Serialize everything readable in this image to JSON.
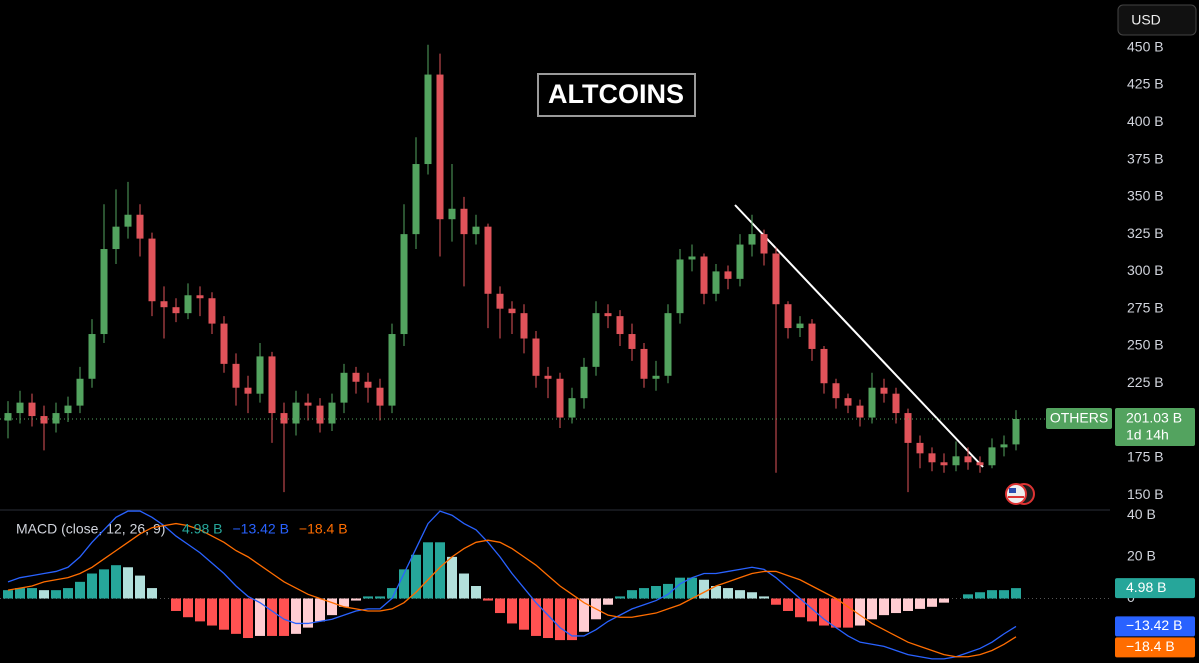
{
  "chart_data": [
    {
      "type": "candlestick",
      "title": "ALTCOINS",
      "currency": "USD",
      "series_label": "OTHERS",
      "last_label": "201.03 B",
      "countdown": "1d 14h",
      "up_color": "#53a35f",
      "down_color": "#e0535a",
      "open": [
        200,
        205,
        212,
        203,
        198,
        205,
        210,
        228,
        258,
        315,
        330,
        338,
        322,
        280,
        276,
        272,
        284,
        282,
        265,
        238,
        222,
        218,
        243,
        205,
        198,
        212,
        210,
        198,
        212,
        232,
        226,
        222,
        210,
        258,
        325,
        372,
        432,
        335,
        342,
        325,
        330,
        285,
        275,
        272,
        255,
        230,
        228,
        202,
        215,
        236,
        272,
        270,
        258,
        248,
        228,
        230,
        272,
        308,
        310,
        285,
        300,
        295,
        318,
        325,
        312,
        278,
        262,
        265,
        248,
        225,
        215,
        210,
        202,
        222,
        218,
        205,
        185,
        178,
        172,
        170,
        176,
        172,
        170,
        182,
        184
      ],
      "high": [
        213,
        220,
        218,
        210,
        212,
        216,
        236,
        268,
        345,
        355,
        360,
        345,
        326,
        290,
        282,
        292,
        290,
        286,
        270,
        245,
        230,
        252,
        246,
        212,
        220,
        218,
        215,
        218,
        238,
        236,
        232,
        228,
        265,
        345,
        390,
        452,
        446,
        372,
        350,
        338,
        332,
        290,
        280,
        278,
        260,
        236,
        232,
        222,
        242,
        280,
        278,
        274,
        265,
        252,
        240,
        278,
        315,
        318,
        312,
        305,
        304,
        325,
        338,
        328,
        316,
        280,
        270,
        268,
        250,
        228,
        218,
        214,
        232,
        228,
        222,
        208,
        190,
        182,
        178,
        186,
        182,
        176,
        188,
        190,
        207
      ],
      "low": [
        188,
        198,
        196,
        180,
        192,
        199,
        205,
        222,
        252,
        305,
        322,
        310,
        270,
        255,
        266,
        268,
        270,
        258,
        232,
        210,
        205,
        212,
        185,
        152,
        190,
        200,
        192,
        193,
        205,
        218,
        212,
        200,
        205,
        250,
        315,
        365,
        310,
        320,
        290,
        318,
        262,
        255,
        258,
        245,
        222,
        215,
        195,
        198,
        208,
        230,
        262,
        250,
        240,
        222,
        220,
        225,
        265,
        300,
        278,
        280,
        288,
        290,
        310,
        304,
        165,
        255,
        256,
        240,
        218,
        208,
        205,
        196,
        198,
        212,
        198,
        152,
        168,
        166,
        165,
        166,
        167,
        165,
        168,
        176,
        180
      ],
      "close": [
        205,
        212,
        203,
        198,
        205,
        210,
        228,
        258,
        315,
        330,
        338,
        322,
        280,
        276,
        272,
        284,
        282,
        265,
        238,
        222,
        218,
        243,
        205,
        198,
        212,
        210,
        198,
        212,
        232,
        226,
        222,
        210,
        258,
        325,
        372,
        432,
        335,
        342,
        325,
        330,
        285,
        275,
        272,
        255,
        230,
        228,
        202,
        215,
        236,
        272,
        270,
        258,
        248,
        228,
        230,
        272,
        308,
        310,
        285,
        300,
        295,
        318,
        325,
        312,
        278,
        262,
        265,
        248,
        225,
        215,
        210,
        202,
        222,
        218,
        205,
        185,
        178,
        172,
        170,
        176,
        172,
        170,
        182,
        184,
        201.03
      ],
      "ylim": [
        140,
        482
      ],
      "yticks": [
        {
          "value": 150,
          "label": "150 B"
        },
        {
          "value": 175,
          "label": "175 B"
        },
        {
          "value": 225,
          "label": "225 B"
        },
        {
          "value": 250,
          "label": "250 B"
        },
        {
          "value": 275,
          "label": "275 B"
        },
        {
          "value": 300,
          "label": "300 B"
        },
        {
          "value": 325,
          "label": "325 B"
        },
        {
          "value": 350,
          "label": "350 B"
        },
        {
          "value": 375,
          "label": "375 B"
        },
        {
          "value": 400,
          "label": "400 B"
        },
        {
          "value": 425,
          "label": "425 B"
        },
        {
          "value": 450,
          "label": "450 B"
        }
      ],
      "grid": false
    },
    {
      "type": "macd",
      "title": "MACD (close, 12, 26, 9)",
      "histogram": {
        "colors": [
          "#26a69a",
          "#b2dfdb",
          "#ff5252",
          "#ffcdd2"
        ],
        "value_label": "4.98 B",
        "values": [
          4,
          5,
          5,
          4,
          4,
          5,
          8,
          12,
          14,
          16,
          15,
          11,
          5,
          0,
          -6,
          -9,
          -11,
          -13,
          -15,
          -17,
          -19,
          -18,
          -18,
          -18,
          -17,
          -14,
          -11,
          -8,
          -4,
          -1,
          1,
          1,
          5,
          14,
          21,
          27,
          27,
          20,
          12,
          6,
          -1,
          -7,
          -12,
          -15,
          -18,
          -19,
          -20,
          -20,
          -16,
          -10,
          -3,
          1,
          4,
          5,
          6,
          7,
          10,
          10,
          9,
          6,
          5,
          4,
          3,
          1,
          -3,
          -6,
          -9,
          -11,
          -13,
          -14,
          -14,
          -13,
          -10,
          -8,
          -7,
          -6,
          -5,
          -4,
          -2,
          0,
          2,
          3,
          4,
          4,
          4.98
        ]
      },
      "macd": {
        "color": "#2962ff",
        "value_label": "−13.42 B",
        "values": [
          8,
          10,
          11,
          12,
          13,
          15,
          20,
          27,
          33,
          39,
          42,
          42,
          39,
          35,
          30,
          26,
          22,
          17,
          12,
          6,
          1,
          -2,
          -6,
          -10,
          -12,
          -12,
          -11,
          -10,
          -8,
          -6,
          -5,
          -5,
          0,
          12,
          24,
          36,
          42,
          40,
          36,
          33,
          27,
          20,
          12,
          5,
          -2,
          -8,
          -14,
          -18,
          -18,
          -15,
          -11,
          -8,
          -5,
          -3,
          -1,
          2,
          7,
          10,
          12,
          12,
          13,
          14,
          15,
          14,
          10,
          5,
          0,
          -5,
          -10,
          -14,
          -18,
          -21,
          -22,
          -23,
          -25,
          -27,
          -28,
          -29,
          -29,
          -28,
          -26,
          -24,
          -21,
          -17,
          -13.42
        ]
      },
      "signal": {
        "color": "#ff6d00",
        "value_label": "−18.4 B",
        "values": [
          4,
          5,
          6,
          8,
          9,
          10,
          12,
          15,
          19,
          23,
          27,
          31,
          34,
          35,
          36,
          35,
          33,
          30,
          27,
          23,
          20,
          16,
          12,
          8,
          5,
          2,
          0,
          -2,
          -4,
          -5,
          -6,
          -6,
          -5,
          -2,
          3,
          9,
          15,
          20,
          24,
          27,
          28,
          27,
          24,
          20,
          16,
          11,
          6,
          2,
          -2,
          -5,
          -8,
          -9,
          -9,
          -8,
          -7,
          -5,
          -3,
          0,
          3,
          6,
          8,
          10,
          12,
          13,
          13,
          11,
          9,
          6,
          3,
          0,
          -4,
          -8,
          -12,
          -15,
          -18,
          -21,
          -23,
          -25,
          -27,
          -28,
          -28,
          -27,
          -25,
          -22,
          -18.4
        ]
      },
      "ylim": [
        -31,
        43
      ],
      "yticks": [
        0,
        {
          "value": 20,
          "label": "20 B"
        },
        {
          "value": 40,
          "label": "40 B"
        }
      ]
    }
  ]
}
